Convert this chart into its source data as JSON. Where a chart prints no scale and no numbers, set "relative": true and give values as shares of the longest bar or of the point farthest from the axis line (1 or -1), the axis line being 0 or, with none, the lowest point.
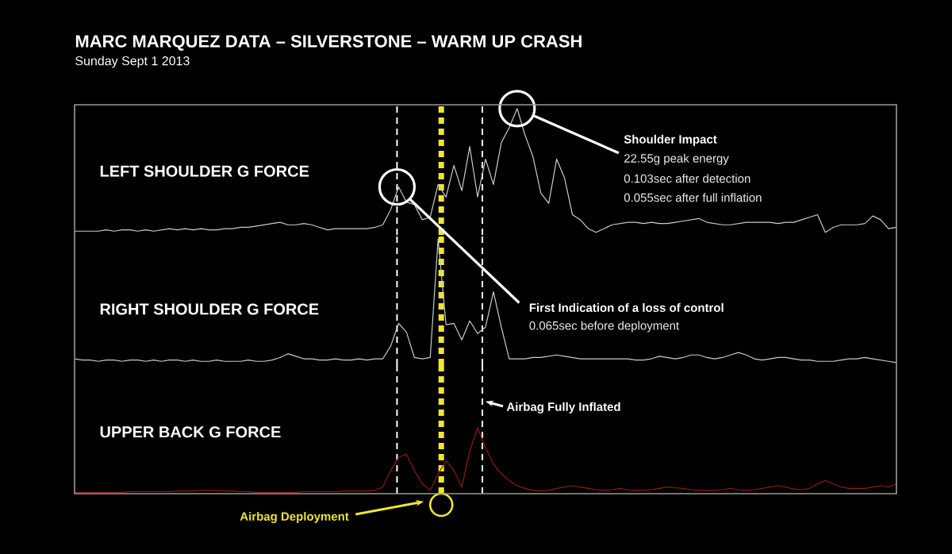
{
  "chart_data": [
    {
      "type": "line",
      "title": "MARC MARQUEZ DATA – SILVERSTONE – WARM UP CRASH",
      "subtitle": "Sunday Sept 1 2013",
      "relative": true,
      "categories": [
        null,
        null,
        null,
        null,
        null,
        null,
        null,
        null,
        null,
        null,
        null,
        null,
        null,
        null,
        null,
        null,
        null,
        null,
        null,
        null,
        null,
        null,
        null,
        null,
        null,
        null,
        null,
        null,
        null,
        null,
        null,
        null,
        null,
        null,
        null,
        null,
        null,
        null,
        null,
        null,
        null,
        null,
        null,
        null,
        null,
        null,
        null,
        null,
        null,
        null,
        null,
        null,
        null,
        null,
        null,
        null,
        null,
        null,
        null,
        null,
        null,
        null,
        null,
        null,
        null,
        null,
        null,
        null,
        null,
        null,
        null,
        null,
        null,
        null,
        null,
        null,
        null,
        null,
        null,
        null,
        null,
        null,
        null,
        null,
        null,
        null,
        null,
        null,
        null,
        null,
        null,
        null,
        null,
        null,
        null,
        null,
        null,
        null,
        null,
        null,
        null,
        null,
        null,
        null,
        null
      ],
      "series": [
        {
          "name": "LEFT SHOULDER G FORCE",
          "color": "#c4cfc4",
          "values": [
            0.03,
            0.03,
            0.03,
            0.03,
            0.04,
            0.03,
            0.04,
            0.04,
            0.03,
            0.04,
            0.03,
            0.04,
            0.05,
            0.04,
            0.05,
            0.04,
            0.05,
            0.04,
            0.04,
            0.05,
            0.05,
            0.06,
            0.06,
            0.07,
            0.08,
            0.09,
            0.1,
            0.08,
            0.08,
            0.09,
            0.08,
            0.06,
            0.04,
            0.05,
            0.05,
            0.05,
            0.05,
            0.05,
            0.06,
            0.08,
            0.2,
            0.38,
            0.26,
            0.24,
            0.12,
            0.14,
            0.4,
            0.3,
            0.55,
            0.35,
            0.7,
            0.3,
            0.6,
            0.4,
            0.73,
            0.85,
            1,
            0.79,
            0.62,
            0.33,
            0.25,
            0.6,
            0.45,
            0.16,
            0.12,
            0.05,
            0.02,
            0.05,
            0.08,
            0.09,
            0.1,
            0.1,
            0.09,
            0.1,
            0.09,
            0.09,
            0.1,
            0.11,
            0.12,
            0.13,
            0.1,
            0.09,
            0.08,
            0.08,
            0.09,
            0.1,
            0.1,
            0.1,
            0.1,
            0.09,
            0.1,
            0.1,
            0.12,
            0.14,
            0.16,
            0.02,
            0.06,
            0.08,
            0.08,
            0.08,
            0.09,
            0.15,
            0.12,
            0.05,
            0.06
          ]
        }
      ],
      "annotations": [
        "**Shoulder Impact**",
        "22.55g peak energy",
        "0.103sec after detection",
        "0.055sec after full inflation",
        "**First Indication of a loss of control**",
        "0.065sec before deployment"
      ]
    },
    {
      "type": "line",
      "relative": true,
      "categories": [
        null,
        null,
        null,
        null,
        null,
        null,
        null,
        null,
        null,
        null,
        null,
        null,
        null,
        null,
        null,
        null,
        null,
        null,
        null,
        null,
        null,
        null,
        null,
        null,
        null,
        null,
        null,
        null,
        null,
        null,
        null,
        null,
        null,
        null,
        null,
        null,
        null,
        null,
        null,
        null,
        null,
        null,
        null,
        null,
        null,
        null,
        null,
        null,
        null,
        null,
        null,
        null,
        null,
        null,
        null,
        null,
        null,
        null,
        null,
        null,
        null,
        null,
        null,
        null,
        null,
        null,
        null,
        null,
        null,
        null,
        null,
        null,
        null,
        null,
        null,
        null,
        null,
        null,
        null,
        null,
        null,
        null,
        null,
        null,
        null,
        null,
        null,
        null,
        null,
        null,
        null,
        null,
        null,
        null,
        null,
        null,
        null,
        null,
        null,
        null,
        null,
        null,
        null,
        null,
        null
      ],
      "series": [
        {
          "name": "RIGHT SHOULDER G FORCE",
          "color": "#c4cfc4",
          "values": [
            0.05,
            0.04,
            0.04,
            0.03,
            0.04,
            0.04,
            0.03,
            0.04,
            0.04,
            0.03,
            0.04,
            0.03,
            0.04,
            0.04,
            0.03,
            0.04,
            0.03,
            0.03,
            0.04,
            0.03,
            0.03,
            0.03,
            0.04,
            0.03,
            0.03,
            0.04,
            0.06,
            0.09,
            0.07,
            0.05,
            0.05,
            0.04,
            0.04,
            0.05,
            0.04,
            0.04,
            0.05,
            0.04,
            0.05,
            0.05,
            0.15,
            0.33,
            0.26,
            0.06,
            0.05,
            0.06,
            1,
            0.32,
            0.33,
            0.2,
            0.35,
            0.25,
            0.3,
            0.58,
            0.3,
            0.05,
            0.05,
            0.05,
            0.06,
            0.06,
            0.07,
            0.08,
            0.07,
            0.06,
            0.05,
            0.05,
            0.05,
            0.05,
            0.05,
            0.05,
            0.05,
            0.04,
            0.04,
            0.05,
            0.07,
            0.06,
            0.05,
            0.06,
            0.08,
            0.08,
            0.06,
            0.05,
            0.06,
            0.08,
            0.1,
            0.08,
            0.05,
            0.04,
            0.05,
            0.06,
            0.06,
            0.05,
            0.04,
            0.04,
            0.03,
            0.03,
            0.03,
            0.04,
            0.05,
            0.05,
            0.06,
            0.05,
            0.04,
            0.03,
            0.02
          ]
        }
      ]
    },
    {
      "type": "line",
      "relative": true,
      "categories": [
        null,
        null,
        null,
        null,
        null,
        null,
        null,
        null,
        null,
        null,
        null,
        null,
        null,
        null,
        null,
        null,
        null,
        null,
        null,
        null,
        null,
        null,
        null,
        null,
        null,
        null,
        null,
        null,
        null,
        null,
        null,
        null,
        null,
        null,
        null,
        null,
        null,
        null,
        null,
        null,
        null,
        null,
        null,
        null,
        null,
        null,
        null,
        null,
        null,
        null,
        null,
        null,
        null,
        null,
        null,
        null,
        null,
        null,
        null,
        null,
        null,
        null,
        null,
        null,
        null,
        null,
        null,
        null,
        null,
        null,
        null,
        null,
        null,
        null,
        null,
        null,
        null,
        null,
        null,
        null,
        null,
        null,
        null,
        null,
        null,
        null,
        null,
        null,
        null,
        null,
        null,
        null,
        null,
        null,
        null,
        null,
        null,
        null,
        null,
        null,
        null,
        null,
        null,
        null,
        null
      ],
      "series": [
        {
          "name": "UPPER BACK G FORCE",
          "color": "#8e1c12",
          "values": [
            0.02,
            0.02,
            0.02,
            0.02,
            0.02,
            0.02,
            0.02,
            0.03,
            0.03,
            0.03,
            0.03,
            0.03,
            0.03,
            0.04,
            0.04,
            0.04,
            0.05,
            0.05,
            0.05,
            0.04,
            0.04,
            0.03,
            0.03,
            0.02,
            0.02,
            0.02,
            0.02,
            0.02,
            0.02,
            0.03,
            0.03,
            0.03,
            0.03,
            0.03,
            0.04,
            0.04,
            0.04,
            0.04,
            0.05,
            0.1,
            0.35,
            0.55,
            0.6,
            0.35,
            0.15,
            0.05,
            0.3,
            0.5,
            0.35,
            0.1,
            0.65,
            1,
            0.7,
            0.45,
            0.3,
            0.2,
            0.12,
            0.08,
            0.05,
            0.04,
            0.05,
            0.08,
            0.1,
            0.12,
            0.1,
            0.08,
            0.06,
            0.05,
            0.06,
            0.08,
            0.06,
            0.05,
            0.05,
            0.06,
            0.08,
            0.1,
            0.09,
            0.08,
            0.06,
            0.05,
            0.05,
            0.05,
            0.06,
            0.08,
            0.06,
            0.05,
            0.06,
            0.08,
            0.1,
            0.12,
            0.1,
            0.07,
            0.06,
            0.08,
            0.15,
            0.2,
            0.15,
            0.1,
            0.08,
            0.08,
            0.08,
            0.1,
            0.12,
            0.1,
            0.15
          ]
        }
      ],
      "annotations": [
        "**Airbag Deployment**",
        "**Airbag Fully Inflated**"
      ]
    }
  ]
}
